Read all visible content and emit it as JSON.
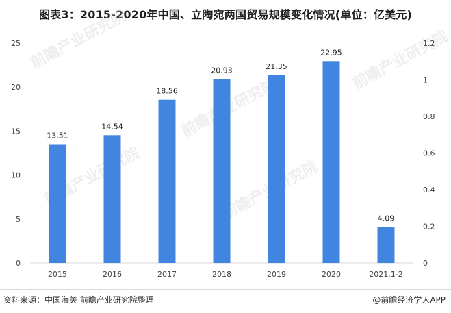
{
  "title": "图表3：2015-2020年中国、立陶宛两国贸易规模变化情况(单位：亿美元)",
  "footer": {
    "source": "资料来源：中国海关 前瞻产业研究院整理",
    "app_brand": "@前瞻经济学人APP"
  },
  "watermark": "前瞻产业研究院",
  "colors": {
    "bar": "#4285e0",
    "axis": "#d9d9d9",
    "tick_text": "#404040",
    "data_label": "#262626",
    "watermark": "#d0d0d0"
  },
  "chart_data": {
    "type": "bar",
    "title": "图表3：2015-2020年中国、立陶宛两国贸易规模变化情况(单位：亿美元)",
    "categories": [
      "2015",
      "2016",
      "2017",
      "2018",
      "2019",
      "2020",
      "2021.1-2"
    ],
    "values": [
      13.51,
      14.54,
      18.56,
      20.93,
      21.35,
      22.95,
      4.09
    ],
    "data_labels": [
      "13.51",
      "14.54",
      "18.56",
      "20.93",
      "21.35",
      "22.95",
      "4.09"
    ],
    "ylim": [
      0,
      25
    ],
    "y_ticks": [
      0,
      5,
      10,
      15,
      20,
      25
    ],
    "y2lim": [
      0,
      1.2
    ],
    "y2_ticks": [
      "0",
      "0.2",
      "0.4",
      "0.6",
      "0.8",
      "1",
      "1.2"
    ],
    "grid": false,
    "xlabel": "",
    "ylabel": ""
  }
}
